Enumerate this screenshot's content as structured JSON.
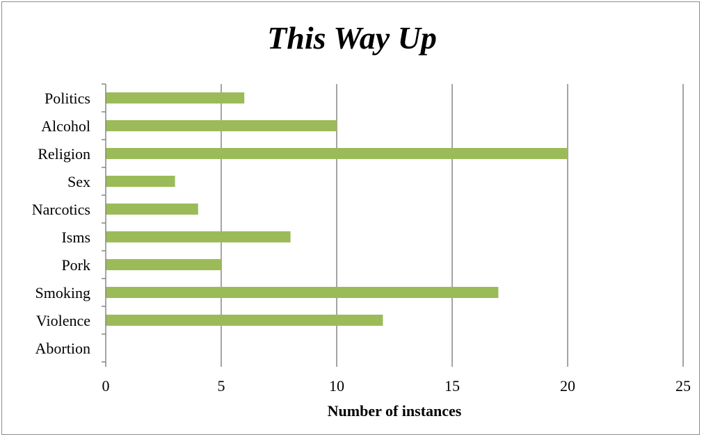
{
  "chart_data": {
    "type": "bar",
    "orientation": "horizontal",
    "title": "This Way Up",
    "xlabel": "Number of instances",
    "ylabel": "",
    "categories": [
      "Politics",
      "Alcohol",
      "Religion",
      "Sex",
      "Narcotics",
      "Isms",
      "Pork",
      "Smoking",
      "Violence",
      "Abortion"
    ],
    "values": [
      6,
      10,
      20,
      3,
      4,
      8,
      5,
      17,
      12,
      0
    ],
    "xlim": [
      0,
      25
    ],
    "xticks": [
      "0",
      "5",
      "10",
      "15",
      "20",
      "25"
    ],
    "grid": true,
    "legend": "none",
    "bar_color": "#9bbb59",
    "grid_color": "#868686"
  }
}
